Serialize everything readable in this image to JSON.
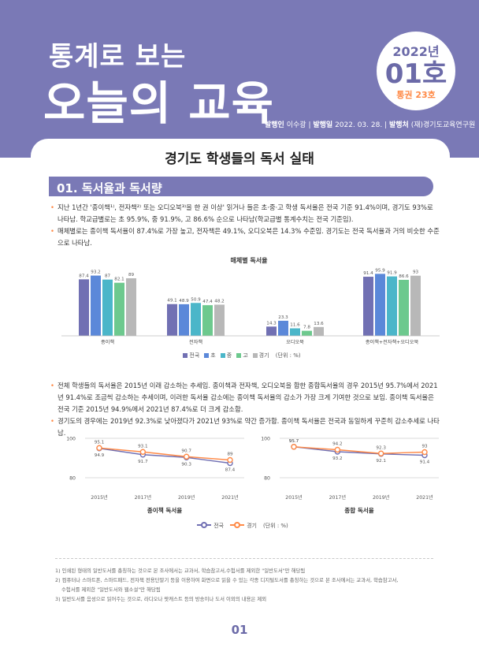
{
  "header": {
    "brand_small": "통계로 보는",
    "brand_big": "오늘의 교육",
    "issue_year": "2022년",
    "issue_no": "01호",
    "issue_vol": "통권 23호",
    "publisher_label": "발행인",
    "publisher": "이수광",
    "date_label": "발행일",
    "date": "2022. 03. 28.",
    "org_label": "발행처",
    "org": "(재)경기도교육연구원",
    "sep": "|"
  },
  "colors": {
    "header_bg": "#7a79b6",
    "accent": "#ff8a47",
    "national": "#7170b3",
    "elem": "#5b88d9",
    "middle": "#4bb6c9",
    "high": "#6dc98e",
    "gyeonggi": "#b8b8b8"
  },
  "doc_title": "경기도 학생들의 독서 실태",
  "section": {
    "number": "01.",
    "title": "독서율과 독서량"
  },
  "bullets1": [
    "지난 1년간 '종이책¹⁾, 전자책²⁾ 또는 오디오북³⁾을 한 권 이상' 읽거나 들은 초·중·고 학생 독서율은 전국 기준 91.4%이며, 경기도 93%로 나타남. 학교급별로는 초 95.9%, 중 91.9%, 고 86.6% 순으로 나타남(학교급별 통계수치는 전국 기준임).",
    "매체별로는 종이책 독서율이 87.4%로 가장 높고, 전자책은 49.1%, 오디오북은 14.3% 수준임. 경기도는 전국 독서율과 거의 비슷한 수준으로 나타남."
  ],
  "bullets2": [
    "전체 학생들의 독서율은 2015년 이래 감소하는 추세임. 종이책과 전자책, 오디오북을 합한 종합독서율의 경우 2015년 95.7%에서 2021년 91.4%로 조금씩 감소하는 추세이며, 이러한 독서율 감소에는 종이책 독서율의 감소가 가장 크게 기여한 것으로 보임. 종이책 독서율은 전국 기준 2015년 94.9%에서 2021년 87.4%로 더 크게 감소함.",
    "경기도의 경우에는 2019년 92.3%로 낮아졌다가 2021년 93%로 약간 증가함. 종이책 독서율은 전국과 동일하게 꾸준히 감소추세로 나타남."
  ],
  "chart_data": [
    {
      "type": "bar",
      "title": "매체별 독서율",
      "categories": [
        "종이책",
        "전자책",
        "오디오북",
        "종이책+전자책+오디오북"
      ],
      "series": [
        {
          "name": "전국",
          "values": [
            87.4,
            49.1,
            14.3,
            91.4
          ]
        },
        {
          "name": "초",
          "values": [
            93.2,
            48.9,
            23.3,
            95.9
          ]
        },
        {
          "name": "중",
          "values": [
            87,
            50.9,
            11.6,
            91.9
          ]
        },
        {
          "name": "고",
          "values": [
            82.1,
            47.4,
            7.8,
            86.6
          ]
        },
        {
          "name": "경기",
          "values": [
            89,
            48.2,
            13.6,
            93
          ]
        }
      ],
      "unit": "(단위 : %)",
      "ylim": [
        0,
        100
      ],
      "legend": "bottom"
    },
    {
      "type": "line",
      "title": "종이책 독서율",
      "x": [
        "2015년",
        "2017년",
        "2019년",
        "2021년"
      ],
      "series": [
        {
          "name": "전국",
          "values": [
            94.9,
            91.7,
            90.3,
            87.4
          ]
        },
        {
          "name": "경기",
          "values": [
            95.1,
            93.1,
            90.7,
            89
          ]
        }
      ],
      "yticks": [
        80,
        100
      ],
      "ylim": [
        80,
        100
      ]
    },
    {
      "type": "line",
      "title": "종합 독서율",
      "x": [
        "2015년",
        "2017년",
        "2019년",
        "2021년"
      ],
      "series": [
        {
          "name": "전국",
          "values": [
            95.7,
            93.2,
            92.1,
            91.4
          ]
        },
        {
          "name": "경기",
          "values": [
            95.7,
            94.2,
            92.3,
            93
          ]
        }
      ],
      "yticks": [
        80,
        100
      ],
      "ylim": [
        80,
        100
      ]
    }
  ],
  "legend2": {
    "unit": "(단위 : %)"
  },
  "footnotes": [
    "1) 인쇄된 형태의 일반도서를 총칭하는 것으로 본 조사에서는 교과서, 학습참고서,수험서를 제외한 \"일반도서\"만 해당됨",
    "2) 컴퓨터나 스마트폰, 스마트패드, 전자책 전용단말기 등을 이용하여 화면으로 읽을 수 있는 각종 디지털도서를 총칭하는 것으로 본 조사에서는 교과서, 학습참고서,",
    "수험서를 제외한 \"일반도서와 웹소설\"만 해당됨",
    "3) 일반도서를 음성으로 읽어주는 것으로, 라디오나 팟캐스트 등의 방송이나 도서 이외의 내용은 제외"
  ],
  "page_number": "01"
}
